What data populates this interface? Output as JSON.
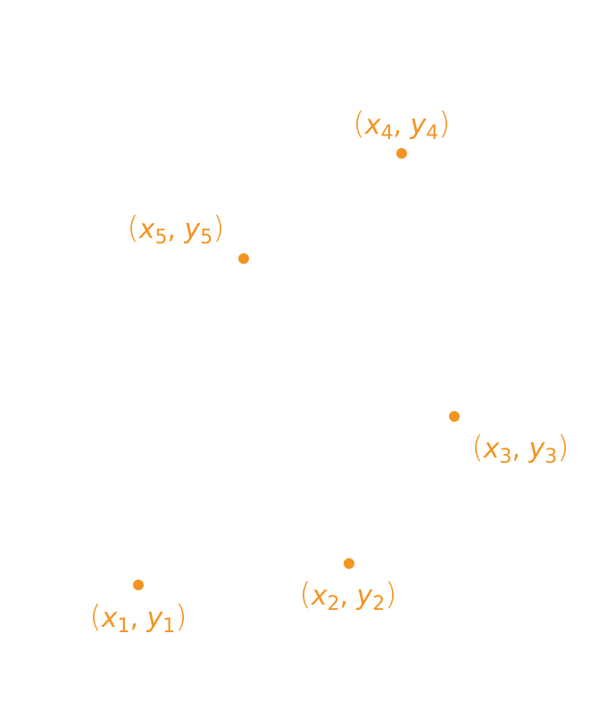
{
  "accent_color": "#f39421",
  "points": [
    {
      "id": "1",
      "x_symbol": "x",
      "y_symbol": "y",
      "subscript": "1"
    },
    {
      "id": "2",
      "x_symbol": "x",
      "y_symbol": "y",
      "subscript": "2"
    },
    {
      "id": "3",
      "x_symbol": "x",
      "y_symbol": "y",
      "subscript": "3"
    },
    {
      "id": "4",
      "x_symbol": "x",
      "y_symbol": "y",
      "subscript": "4"
    },
    {
      "id": "5",
      "x_symbol": "x",
      "y_symbol": "y",
      "subscript": "5"
    }
  ]
}
